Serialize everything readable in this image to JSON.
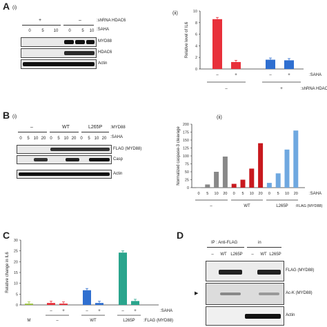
{
  "panels": {
    "A": {
      "letter": "A",
      "blot": {
        "label": "(i)",
        "groups": [
          "+",
          "–"
        ],
        "group_row_label": ":shRNA HDAC6",
        "saha_row_label": ":SAHA",
        "lanes": [
          "0",
          "5",
          "10",
          "0",
          "5",
          "10"
        ],
        "rows": [
          "MYD88",
          "HDAC6",
          "Actin"
        ]
      },
      "chart": {
        "label": "(ii)",
        "row1_label": ":SAHA",
        "row2_label": ":shRNA HDAC6",
        "group_signs": [
          "–",
          "+"
        ]
      }
    },
    "B": {
      "letter": "B",
      "blot": {
        "label": "(i)",
        "groups": [
          "–",
          "WT",
          "L265P"
        ],
        "group_row_label": ":MYD88",
        "saha_row_label": ":SAHA",
        "lanes": [
          "0",
          "5",
          "10",
          "20",
          "0",
          "5",
          "10",
          "20",
          "0",
          "5",
          "10",
          "20"
        ],
        "rows": [
          "FLAG (MYD88)",
          "Casp",
          "Actin"
        ]
      },
      "chart": {
        "label": "(ii)",
        "row1_label": ":SAHA",
        "row2_label": ":FLAG (MYD88)",
        "groups": [
          "–",
          "WT",
          "L265P"
        ]
      }
    },
    "C": {
      "letter": "C",
      "chart": {
        "row1_label": ":SAHA",
        "row2_label": ":FLAG (MYD88)",
        "groups": [
          "M",
          "–",
          "WT",
          "L265P"
        ],
        "signs": [
          "–",
          "+",
          "–",
          "+",
          "–",
          "+"
        ]
      }
    },
    "D": {
      "letter": "D",
      "blot": {
        "header_ip": "IP : Anti-FLAG",
        "header_in": "in",
        "lanes": [
          "–",
          "WT",
          "L265P",
          "–",
          "WT",
          "L265P"
        ],
        "rows": [
          "FLAG (MYD88)",
          "Ac-K (MYD88)",
          "Actin"
        ],
        "arrow": "▶"
      }
    }
  },
  "chart_data": [
    {
      "id": "A-ii",
      "type": "bar",
      "ylabel": "Relative level of IL6",
      "ylim": [
        0,
        10
      ],
      "yticks": [
        "0",
        "2",
        "4",
        "6",
        "8",
        "10"
      ],
      "categories": [
        "–",
        "+",
        "–",
        "+"
      ],
      "values": [
        8.6,
        1.2,
        1.6,
        1.5
      ],
      "colors": [
        "#e8303a",
        "#e8303a",
        "#2f6fd0",
        "#2f6fd0"
      ]
    },
    {
      "id": "B-ii",
      "type": "bar",
      "ylabel": "Normalized caspase-3 cleavage",
      "ylim": [
        0,
        200
      ],
      "yticks": [
        "0",
        "25",
        "50",
        "75",
        "100",
        "125",
        "150",
        "175",
        "200"
      ],
      "categories": [
        "0",
        "5",
        "10",
        "20",
        "0",
        "5",
        "10",
        "20",
        "0",
        "5",
        "10",
        "20"
      ],
      "values": [
        0,
        10,
        50,
        98,
        12,
        25,
        60,
        140,
        15,
        45,
        120,
        180
      ],
      "colors": [
        "#888888",
        "#888888",
        "#888888",
        "#888888",
        "#c8191e",
        "#c8191e",
        "#c8191e",
        "#c8191e",
        "#6fa8e0",
        "#6fa8e0",
        "#6fa8e0",
        "#6fa8e0"
      ]
    },
    {
      "id": "C",
      "type": "bar",
      "ylabel": "Relative change in IL6",
      "ylim": [
        0,
        30
      ],
      "yticks": [
        "0",
        "5",
        "10",
        "15",
        "20",
        "25",
        "30"
      ],
      "categories": [
        "M",
        "–",
        "+",
        "–",
        "+",
        "–",
        "+"
      ],
      "values": [
        0.6,
        0.9,
        0.6,
        6.8,
        0.9,
        24.2,
        1.8
      ],
      "colors": [
        "#9bc23c",
        "#e8303a",
        "#e8303a",
        "#2f6fd0",
        "#2f6fd0",
        "#2aa58d",
        "#2aa58d"
      ]
    }
  ]
}
